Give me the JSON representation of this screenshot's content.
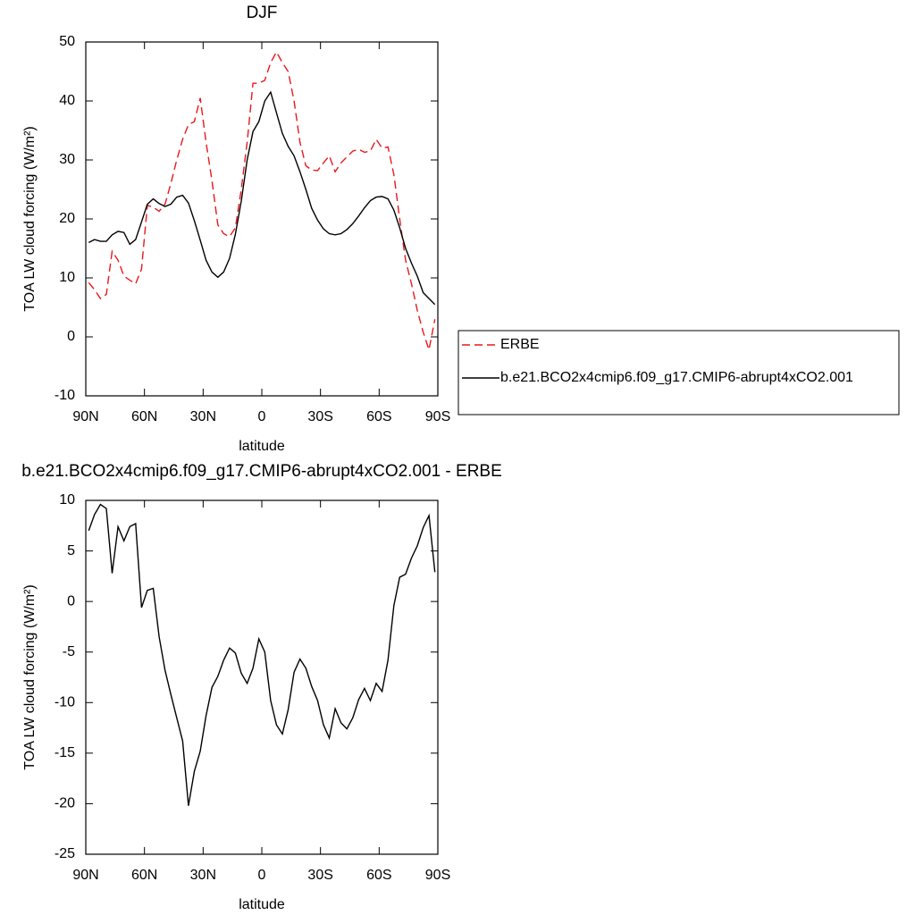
{
  "chart_data": [
    {
      "type": "line",
      "title": "DJF",
      "xlabel": "latitude",
      "ylabel": "TOA LW cloud forcing (W/m²)",
      "x": [
        88.5,
        85.5,
        82.5,
        79.5,
        76.5,
        73.5,
        70.5,
        67.5,
        64.5,
        61.5,
        58.5,
        55.5,
        52.5,
        49.5,
        46.5,
        43.5,
        40.5,
        37.5,
        34.5,
        31.5,
        28.5,
        25.5,
        22.5,
        19.5,
        16.5,
        13.5,
        10.5,
        7.5,
        4.5,
        1.5,
        -1.5,
        -4.5,
        -7.5,
        -10.5,
        -13.5,
        -16.5,
        -19.5,
        -22.5,
        -25.5,
        -28.5,
        -31.5,
        -34.5,
        -37.5,
        -40.5,
        -43.5,
        -46.5,
        -49.5,
        -52.5,
        -55.5,
        -58.5,
        -61.5,
        -64.5,
        -67.5,
        -70.5,
        -73.5,
        -76.5,
        -79.5,
        -82.5,
        -85.5,
        -88.5
      ],
      "series": [
        {
          "name": "ERBE",
          "color": "#e8191c",
          "dashed": true,
          "values": [
            9.2,
            8,
            6.5,
            7.2,
            14.5,
            13,
            10.3,
            9.6,
            9,
            11.5,
            22.3,
            22,
            21.3,
            22.5,
            26,
            30,
            33.5,
            36,
            36.5,
            40.5,
            33,
            26.5,
            19,
            17.5,
            17,
            18.5,
            25,
            33,
            43,
            43,
            43.5,
            46.5,
            48.3,
            46.5,
            45,
            40,
            33,
            29,
            28.3,
            28.2,
            29.5,
            30.7,
            28,
            29.5,
            30.5,
            31.5,
            31.8,
            31.3,
            31.5,
            33.5,
            32,
            32.2,
            27.5,
            20,
            13,
            9,
            4.5,
            0.8,
            -2.2,
            3
          ]
        },
        {
          "name": "b.e21.BCO2x4cmip6.f09_g17.CMIP6-abrupt4xCO2.001",
          "color": "#000000",
          "dashed": false,
          "values": [
            16,
            16.5,
            16.2,
            16.2,
            17.3,
            17.9,
            17.7,
            15.7,
            16.5,
            19.5,
            22.5,
            23.4,
            22.6,
            22.1,
            22.5,
            23.7,
            24,
            22.7,
            19.7,
            16.4,
            13,
            11,
            10.1,
            11,
            13.3,
            17.4,
            23,
            30,
            34.8,
            36.5,
            40,
            41.5,
            38,
            34.5,
            32.3,
            30.7,
            28,
            25,
            21.8,
            19.8,
            18.3,
            17.5,
            17.3,
            17.5,
            18.2,
            19.2,
            20.5,
            21.9,
            23.1,
            23.7,
            23.8,
            23.4,
            21.5,
            18.5,
            15,
            12.5,
            10.3,
            7.5,
            6.5,
            5.5
          ]
        }
      ],
      "xlim": [
        90,
        -90
      ],
      "xticks": [
        {
          "value": 90,
          "label": "90N"
        },
        {
          "value": 60,
          "label": "60N"
        },
        {
          "value": 30,
          "label": "30N"
        },
        0,
        {
          "value": -30,
          "label": "30S"
        },
        {
          "value": -60,
          "label": "60S"
        },
        {
          "value": -90,
          "label": "90S"
        }
      ],
      "ylim": [
        -10,
        50
      ],
      "yticks": [
        -10,
        0,
        10,
        20,
        30,
        40,
        50
      ],
      "legend": "right"
    },
    {
      "type": "line",
      "title": "b.e21.BCO2x4cmip6.f09_g17.CMIP6-abrupt4xCO2.001 - ERBE",
      "xlabel": "latitude",
      "ylabel": "TOA LW cloud forcing (W/m²)",
      "x": [
        88.5,
        85.5,
        82.5,
        79.5,
        76.5,
        73.5,
        70.5,
        67.5,
        64.5,
        61.5,
        58.5,
        55.5,
        52.5,
        49.5,
        46.5,
        43.5,
        40.5,
        37.5,
        34.5,
        31.5,
        28.5,
        25.5,
        22.5,
        19.5,
        16.5,
        13.5,
        10.5,
        7.5,
        4.5,
        1.5,
        -1.5,
        -4.5,
        -7.5,
        -10.5,
        -13.5,
        -16.5,
        -19.5,
        -22.5,
        -25.5,
        -28.5,
        -31.5,
        -34.5,
        -37.5,
        -40.5,
        -43.5,
        -46.5,
        -49.5,
        -52.5,
        -55.5,
        -58.5,
        -61.5,
        -64.5,
        -67.5,
        -70.5,
        -73.5,
        -76.5,
        -79.5,
        -82.5,
        -85.5,
        -88.5
      ],
      "color": "#000000",
      "values": [
        7,
        8.6,
        9.6,
        9.2,
        2.8,
        7.4,
        6,
        7.4,
        7.7,
        -0.6,
        1.1,
        1.3,
        -3.5,
        -6.8,
        -9.2,
        -11.5,
        -13.8,
        -20.2,
        -16.8,
        -14.8,
        -11.3,
        -8.5,
        -7.4,
        -5.8,
        -4.6,
        -5.1,
        -7.1,
        -8.1,
        -6.6,
        -3.7,
        -5,
        -9.8,
        -12.2,
        -13.1,
        -10.7,
        -7,
        -5.7,
        -6.6,
        -8.4,
        -9.8,
        -12.2,
        -13.5,
        -10.6,
        -12,
        -12.6,
        -11.5,
        -9.7,
        -8.6,
        -9.8,
        -8.1,
        -8.9,
        -5.8,
        -0.4,
        2.4,
        2.7,
        4.3,
        5.5,
        7.3,
        8.5,
        2.9
      ],
      "xlim": [
        90,
        -90
      ],
      "xticks": [
        {
          "value": 90,
          "label": "90N"
        },
        {
          "value": 60,
          "label": "60N"
        },
        {
          "value": 30,
          "label": "30N"
        },
        0,
        {
          "value": -30,
          "label": "30S"
        },
        {
          "value": -60,
          "label": "60S"
        },
        {
          "value": -90,
          "label": "90S"
        }
      ],
      "ylim": [
        -25,
        10
      ],
      "yticks": [
        -25,
        -20,
        -15,
        -10,
        -5,
        0,
        5,
        10
      ]
    }
  ]
}
